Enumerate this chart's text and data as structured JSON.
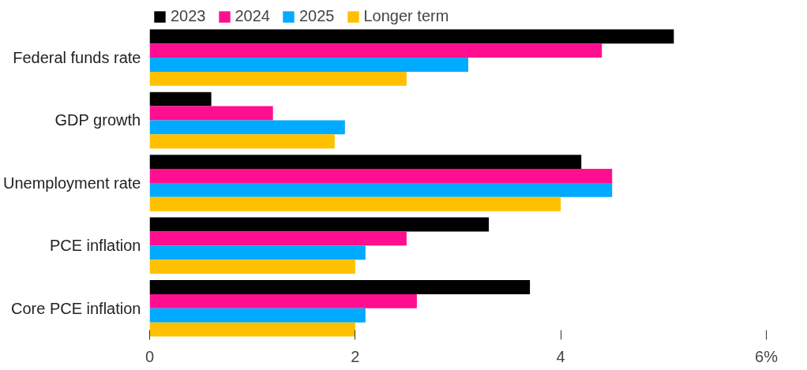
{
  "chart_data": {
    "type": "bar",
    "orientation": "horizontal",
    "categories": [
      "Federal funds rate",
      "GDP growth",
      "Unemployment rate",
      "PCE inflation",
      "Core PCE inflation"
    ],
    "series": [
      {
        "name": "2023",
        "color": "#000000",
        "values": [
          5.1,
          0.6,
          4.2,
          3.3,
          3.7
        ]
      },
      {
        "name": "2024",
        "color": "#ff0f8f",
        "values": [
          4.4,
          1.2,
          4.5,
          2.5,
          2.6
        ]
      },
      {
        "name": "2025",
        "color": "#00aaff",
        "values": [
          3.1,
          1.9,
          4.5,
          2.1,
          2.1
        ]
      },
      {
        "name": "Longer term",
        "color": "#ffc000",
        "values": [
          2.5,
          1.8,
          4.0,
          2.0,
          2.0
        ]
      }
    ],
    "xlim": [
      0,
      6
    ],
    "xticks": [
      0,
      2,
      4,
      {
        "value": 6,
        "label": "6%"
      }
    ],
    "grid": false,
    "legend": "top left"
  }
}
